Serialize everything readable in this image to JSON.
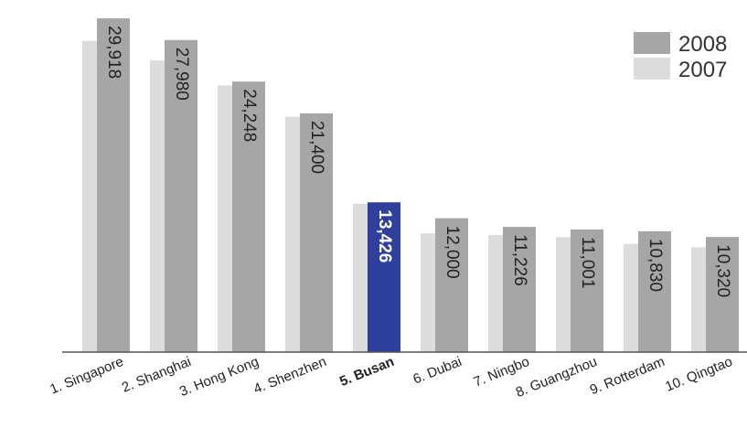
{
  "chart_data": {
    "type": "bar",
    "categories": [
      "1. Singapore",
      "2. Shanghai",
      "3. Hong Kong",
      "4. Shenzhen",
      "5. Busan",
      "6. Dubai",
      "7. Ningbo",
      "8. Guangzhou",
      "9. Rotterdam",
      "10. Qingtao"
    ],
    "highlight_category": "5. Busan",
    "series": [
      {
        "name": "2007",
        "color": "#dcdcdc",
        "values": [
          27900,
          26150,
          23900,
          21100,
          13300,
          10650,
          10500,
          10300,
          9700,
          9400
        ]
      },
      {
        "name": "2008",
        "color": "#a6a6a6",
        "values": [
          29918,
          27980,
          24248,
          21400,
          13426,
          12000,
          11226,
          11001,
          10830,
          10320
        ],
        "labels": [
          "29,918",
          "27,980",
          "24,248",
          "21,400",
          "13,426",
          "12,000",
          "11,226",
          "11,001",
          "10,830",
          "10,320"
        ]
      }
    ],
    "highlight_color": "#2e3f9c",
    "legend": [
      "2008",
      "2007"
    ],
    "legend_position": "top-right",
    "ylim": [
      0,
      30500
    ],
    "grid": false,
    "title": "",
    "xlabel": "",
    "ylabel": ""
  }
}
